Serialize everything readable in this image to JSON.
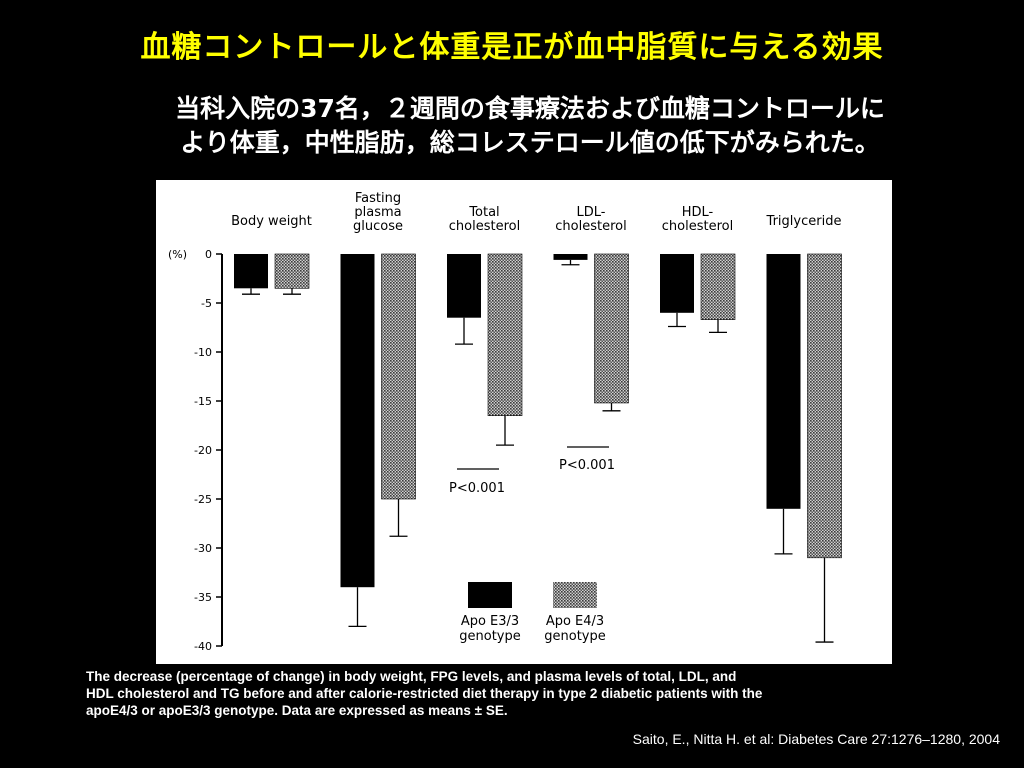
{
  "slide": {
    "title": "血糖コントロールと体重是正が血中脂質に与える効果",
    "subtitle_line1": "当科入院の37名，２週間の食事療法および血糖コントロールに",
    "subtitle_line2": "より体重，中性脂肪，総コレステロール値の低下がみられた。",
    "caption_line1": "The decrease (percentage of change) in body weight, FPG levels, and plasma levels of total, LDL, and",
    "caption_line2": "HDL cholesterol and TG before and after calorie-restricted diet therapy in type 2 diabetic patients with the",
    "caption_line3": "apoE4/3 or apoE3/3 genotype. Data are expressed as means ± SE.",
    "citation": "Saito, E., Nitta H. et al: Diabetes Care 27:1276–1280, 2004"
  },
  "chart_data": {
    "type": "bar",
    "ylabel": "(%)",
    "ylim": [
      -40,
      0
    ],
    "yticks": [
      0,
      -5,
      -10,
      -15,
      -20,
      -25,
      -30,
      -35,
      -40
    ],
    "categories": [
      [
        "Body weight"
      ],
      [
        "Fasting",
        "plasma",
        "glucose"
      ],
      [
        "Total",
        "cholesterol"
      ],
      [
        "LDL-",
        "cholesterol"
      ],
      [
        "HDL-",
        "cholesterol"
      ],
      [
        "Triglyceride"
      ]
    ],
    "series": [
      {
        "name": "Apo E3/3 genotype",
        "legend_lines": [
          "Apo E3/3",
          "genotype"
        ],
        "color": "#000000",
        "values": [
          -3.5,
          -34.0,
          -6.5,
          -0.6,
          -6.0,
          -26.0
        ],
        "errors": [
          0.6,
          4.0,
          2.7,
          0.5,
          1.4,
          4.6
        ]
      },
      {
        "name": "Apo E4/3 genotype",
        "legend_lines": [
          "Apo E4/3",
          "genotype"
        ],
        "color": "#9a9a9a",
        "values": [
          -3.5,
          -25.0,
          -16.5,
          -15.2,
          -6.7,
          -31.0
        ],
        "errors": [
          0.6,
          3.8,
          3.0,
          0.8,
          1.3,
          8.6
        ]
      }
    ],
    "annotations": [
      {
        "text": "P<0.001",
        "category_index": 2
      },
      {
        "text": "P<0.001",
        "category_index": 3
      }
    ],
    "grid": false,
    "legend_position": "bottom"
  }
}
